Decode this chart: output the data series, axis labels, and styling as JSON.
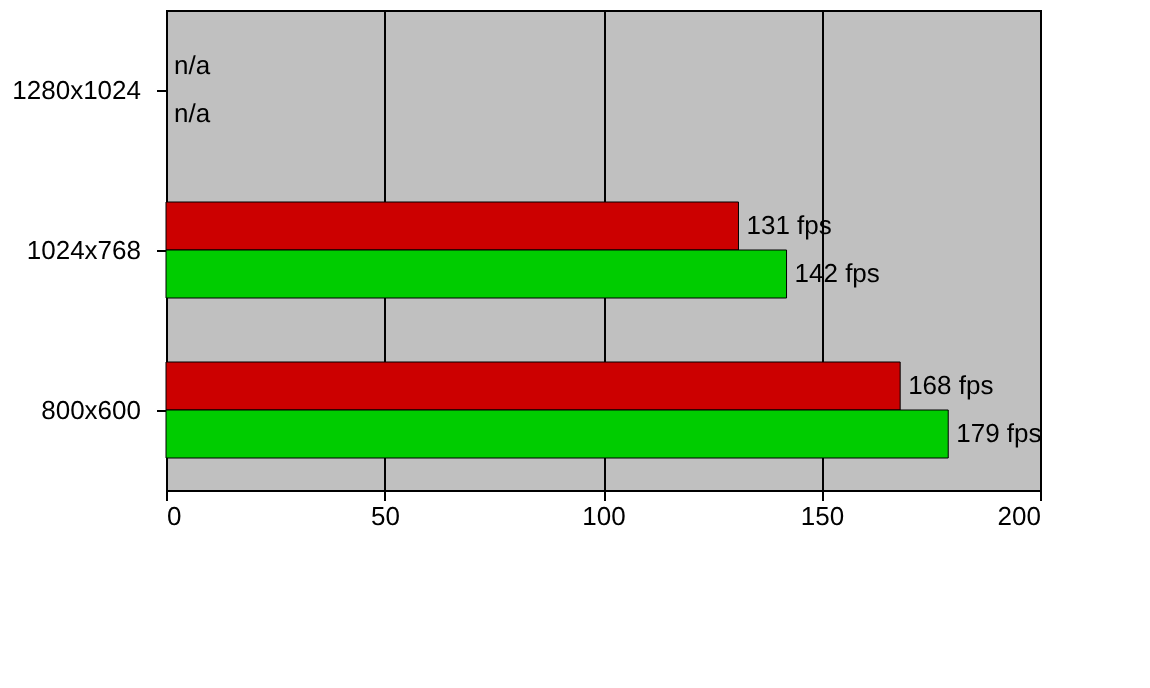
{
  "chart_data": {
    "type": "bar",
    "orientation": "horizontal",
    "categories": [
      "1280x1024",
      "1024x768",
      "800x600"
    ],
    "series": [
      {
        "color": "#cc0000",
        "values": [
          null,
          131,
          168
        ],
        "value_labels": [
          "n/a",
          "131 fps",
          "168 fps"
        ]
      },
      {
        "color": "#00cc00",
        "values": [
          null,
          142,
          179
        ],
        "value_labels": [
          "n/a",
          "142 fps",
          "179 fps"
        ]
      }
    ],
    "xlim": [
      0,
      200
    ],
    "xticks": [
      0,
      50,
      100,
      150,
      200
    ],
    "grid": "x",
    "legend": false
  }
}
